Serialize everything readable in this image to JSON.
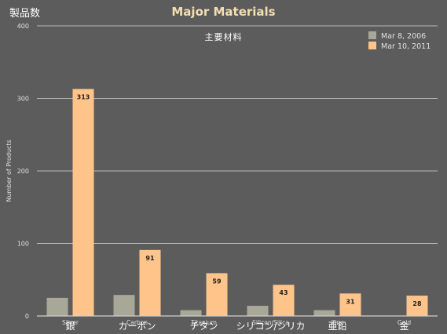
{
  "header": {
    "jp_ylabel": "製品数",
    "title": "Major Materials",
    "jp_title": "主要材料"
  },
  "colors": {
    "background": "#5c5c5c",
    "series_2006": "#a8a898",
    "series_2011": "#ffc48a",
    "grid": "#b8b8b8",
    "text": "#e0e0e0"
  },
  "chart_data": {
    "type": "bar",
    "title": "Major Materials",
    "ylabel": "Number of Products",
    "ylim": [
      0,
      400
    ],
    "yticks": [
      0,
      100,
      200,
      300,
      400
    ],
    "grid": true,
    "legend_position": "top-right",
    "categories": [
      "Silver",
      "Carbon",
      "Titanium",
      "Silicon/Silica",
      "Zinc",
      "Gold"
    ],
    "categories_jp": [
      "銀",
      "カーボン",
      "チタン",
      "シリコン/シリカ",
      "亜鉛",
      "金"
    ],
    "series": [
      {
        "name": "Mar 8, 2006",
        "values": [
          25,
          29,
          8,
          14,
          8,
          0
        ],
        "show_labels": false
      },
      {
        "name": "Mar 10, 2011",
        "values": [
          313,
          91,
          59,
          43,
          31,
          28
        ],
        "show_labels": true
      }
    ]
  }
}
